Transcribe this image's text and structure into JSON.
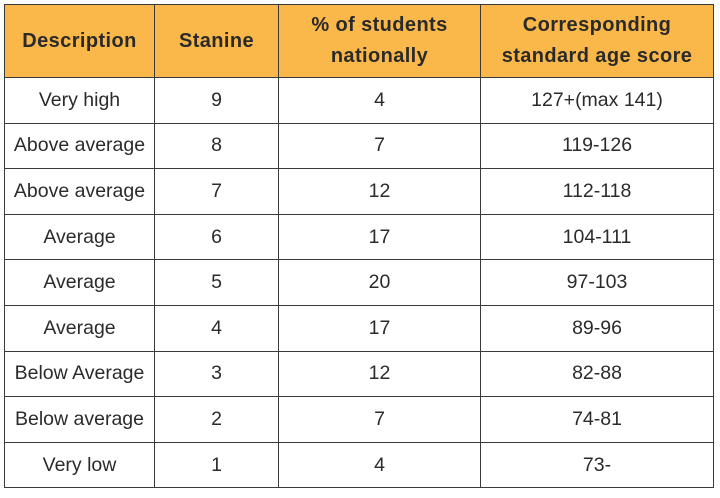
{
  "table": {
    "headers": [
      "Description",
      "Stanine",
      "% of students nationally",
      "Corresponding standard age score"
    ],
    "header_lines": [
      [
        "Description"
      ],
      [
        "Stanine"
      ],
      [
        "% of students",
        "nationally"
      ],
      [
        "Corresponding",
        "standard age score"
      ]
    ],
    "header_color": "#fbb84a",
    "rows": [
      {
        "description": "Very high",
        "stanine": "9",
        "percent": "4",
        "score": "127+(max 141)"
      },
      {
        "description": "Above average",
        "stanine": "8",
        "percent": "7",
        "score": "119-126"
      },
      {
        "description": "Above average",
        "stanine": "7",
        "percent": "12",
        "score": "112-118"
      },
      {
        "description": "Average",
        "stanine": "6",
        "percent": "17",
        "score": "104-111"
      },
      {
        "description": "Average",
        "stanine": "5",
        "percent": "20",
        "score": "97-103"
      },
      {
        "description": "Average",
        "stanine": "4",
        "percent": "17",
        "score": "89-96"
      },
      {
        "description": "Below Average",
        "stanine": "3",
        "percent": "12",
        "score": "82-88"
      },
      {
        "description": "Below average",
        "stanine": "2",
        "percent": "7",
        "score": "74-81"
      },
      {
        "description": "Very low",
        "stanine": "1",
        "percent": "4",
        "score": "73-"
      }
    ]
  }
}
